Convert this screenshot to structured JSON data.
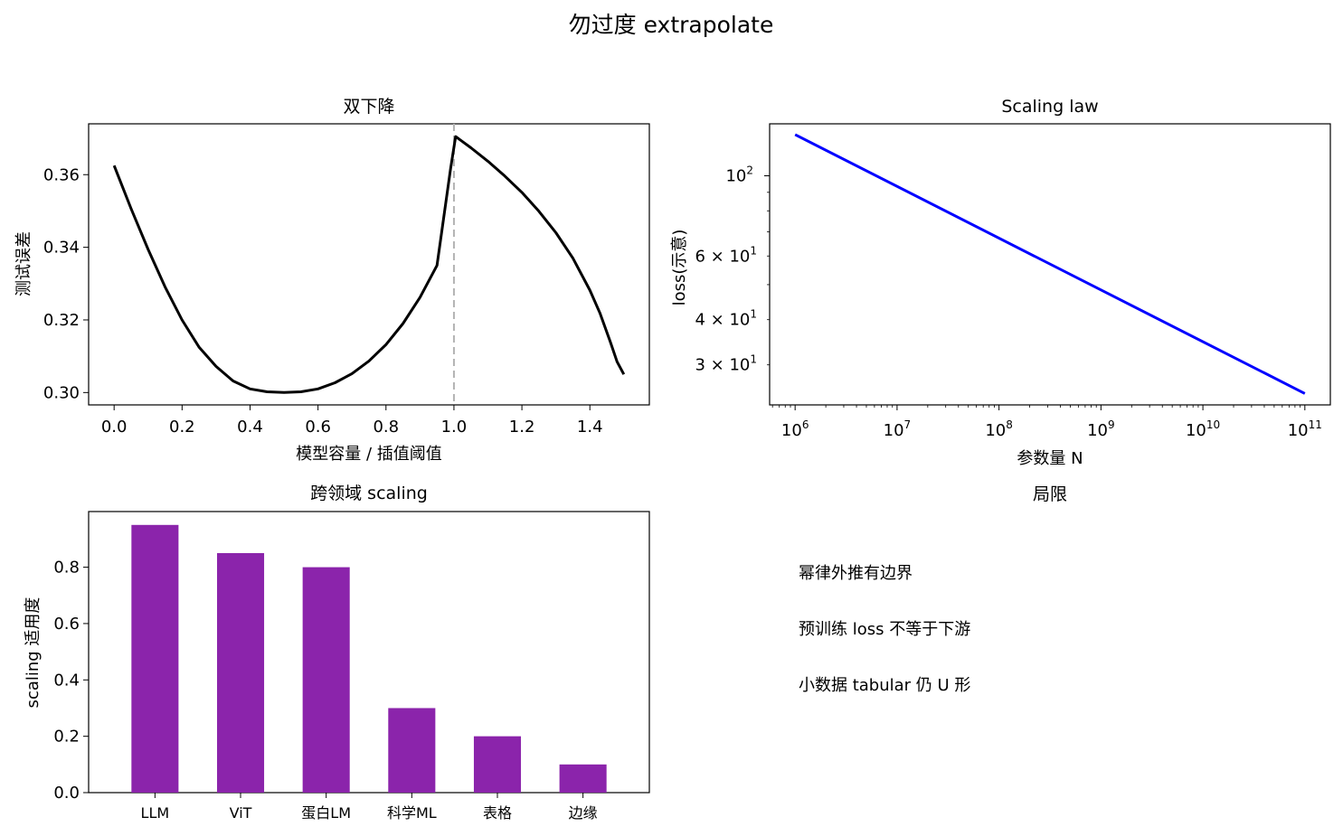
{
  "suptitle": "勿过度 extrapolate",
  "chart_data": [
    {
      "type": "line",
      "title": "双下降",
      "xlabel": "模型容量 / 插值阈值",
      "ylabel": "测试误差",
      "xlim": [
        -0.075,
        1.575
      ],
      "ylim": [
        0.2966,
        0.374
      ],
      "xticks": [
        0.0,
        0.2,
        0.4,
        0.6,
        0.8,
        1.0,
        1.2,
        1.4
      ],
      "xtick_labels": [
        "0.0",
        "0.2",
        "0.4",
        "0.6",
        "0.8",
        "1.0",
        "1.2",
        "1.4"
      ],
      "yticks": [
        0.3,
        0.32,
        0.34,
        0.36
      ],
      "ytick_labels": [
        "0.30",
        "0.32",
        "0.34",
        "0.36"
      ],
      "vline": {
        "x": 1.0,
        "color": "#b3b3b3",
        "style": "dashed"
      },
      "series": [
        {
          "color": "#000000",
          "x": [
            0.0,
            0.05,
            0.1,
            0.15,
            0.2,
            0.25,
            0.3,
            0.35,
            0.4,
            0.45,
            0.5,
            0.55,
            0.6,
            0.65,
            0.7,
            0.75,
            0.8,
            0.85,
            0.9,
            0.95,
            0.99,
            1.005,
            1.05,
            1.1,
            1.15,
            1.2,
            1.25,
            1.3,
            1.35,
            1.4,
            1.43,
            1.46,
            1.48,
            1.5
          ],
          "y": [
            0.3625,
            0.3506,
            0.3394,
            0.3291,
            0.32,
            0.3125,
            0.3072,
            0.3032,
            0.301,
            0.3002,
            0.3,
            0.3002,
            0.301,
            0.3027,
            0.3052,
            0.3087,
            0.3132,
            0.319,
            0.3262,
            0.335,
            0.3616,
            0.3705,
            0.3674,
            0.3637,
            0.3596,
            0.3551,
            0.3499,
            0.344,
            0.337,
            0.3282,
            0.3218,
            0.314,
            0.3085,
            0.305
          ]
        }
      ]
    },
    {
      "type": "line",
      "title": "Scaling law",
      "xlabel": "参数量 N",
      "ylabel": "loss(示意)",
      "xscale": "log",
      "yscale": "log",
      "xlim_log10": [
        5.75,
        11.25
      ],
      "ylim_log10": [
        1.3664,
        2.1437
      ],
      "xtick_base": "10",
      "xtick_exps": [
        "6",
        "7",
        "8",
        "9",
        "10",
        "11"
      ],
      "ytick_major": [
        {
          "value": 100,
          "base": "10",
          "exp": "2"
        }
      ],
      "ytick_minor": [
        {
          "value": 60,
          "mant": "6",
          "base": "10",
          "exp": "1"
        },
        {
          "value": 40,
          "mant": "4",
          "base": "10",
          "exp": "1"
        },
        {
          "value": 30,
          "mant": "3",
          "base": "10",
          "exp": "1"
        }
      ],
      "series": [
        {
          "color": "#0000ff",
          "x": [
            1000000,
            100000000000
          ],
          "y": [
            130,
            25
          ]
        }
      ]
    },
    {
      "type": "bar",
      "title": "跨领域 scaling",
      "xlabel": "",
      "ylabel": "scaling 适用度",
      "ylim": [
        0.0,
        0.9975
      ],
      "yticks": [
        0.0,
        0.2,
        0.4,
        0.6,
        0.8
      ],
      "ytick_labels": [
        "0.0",
        "0.2",
        "0.4",
        "0.6",
        "0.8"
      ],
      "categories": [
        "LLM",
        "ViT",
        "蛋白LM",
        "科学ML",
        "表格",
        "边缘"
      ],
      "values": [
        0.95,
        0.85,
        0.8,
        0.3,
        0.2,
        0.1
      ],
      "color": "#8b24ab"
    }
  ],
  "limits_panel": {
    "title": "局限",
    "lines": [
      "幂律外推有边界",
      "预训练 loss 不等于下游",
      "小数据 tabular 仍 U 形"
    ]
  }
}
